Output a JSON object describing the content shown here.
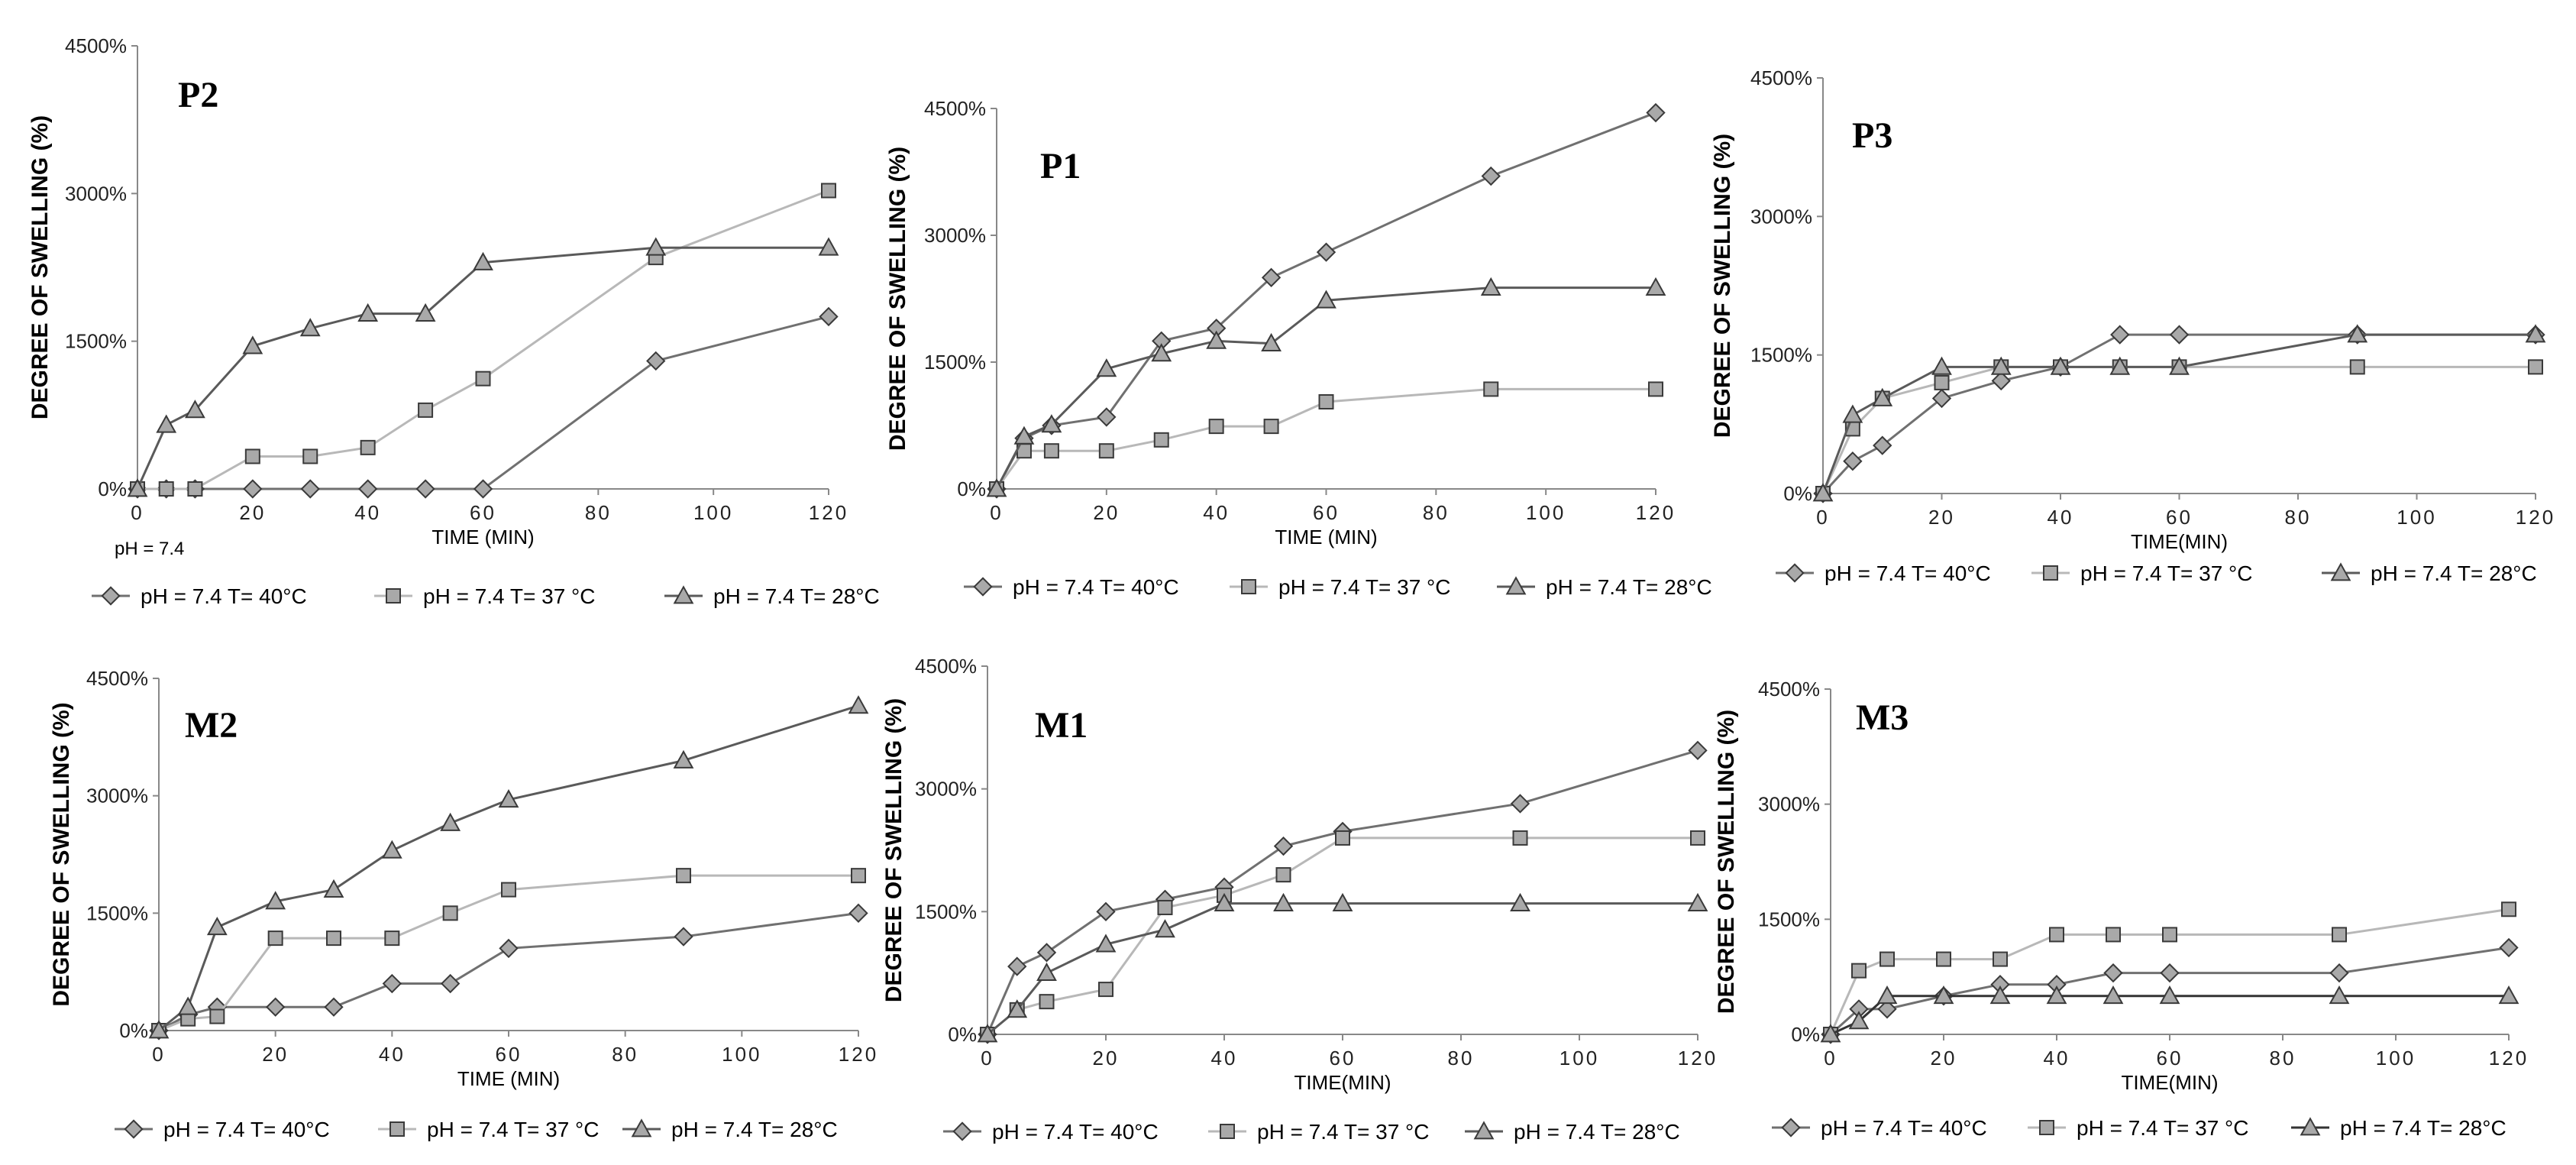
{
  "chart_data": [
    {
      "type": "line",
      "title": "P2",
      "xlabel": "TIME (MIN)",
      "ylabel": "DEGREE  OF SWELLING  (%)",
      "note": "pH = 7.4",
      "xlim": [
        0,
        120
      ],
      "ylim": [
        0,
        4500
      ],
      "xticks": [
        "0",
        "20",
        "40",
        "60",
        "80",
        "100",
        "120"
      ],
      "yticks": [
        "0%",
        "1500%",
        "3000%",
        "4500%"
      ],
      "series": [
        {
          "name": "pH = 7.4  T= 40°C",
          "marker": "diamond",
          "color": "#707070",
          "x": [
            0,
            5,
            10,
            20,
            30,
            40,
            50,
            60,
            90,
            120
          ],
          "y": [
            0,
            0,
            0,
            0,
            0,
            0,
            0,
            0,
            1300,
            1750
          ]
        },
        {
          "name": "pH = 7.4 T= 37 °C",
          "marker": "square",
          "color": "#b8b8b8",
          "x": [
            0,
            5,
            10,
            20,
            30,
            40,
            50,
            60,
            90,
            120
          ],
          "y": [
            0,
            0,
            0,
            330,
            330,
            420,
            800,
            1120,
            2350,
            3030
          ]
        },
        {
          "name": "pH = 7.4    T= 28°C",
          "marker": "triangle",
          "color": "#5a5a5a",
          "x": [
            0,
            5,
            10,
            20,
            30,
            40,
            50,
            60,
            90,
            120
          ],
          "y": [
            0,
            650,
            800,
            1450,
            1630,
            1780,
            1780,
            2300,
            2450,
            2450
          ]
        }
      ]
    },
    {
      "type": "line",
      "title": "P1",
      "xlabel": "TIME (MIN)",
      "ylabel": "DEGREE OF SWELLING  (%)",
      "xlim": [
        0,
        120
      ],
      "ylim": [
        0,
        4500
      ],
      "xticks": [
        "0",
        "20",
        "40",
        "60",
        "80",
        "100",
        "120"
      ],
      "yticks": [
        "0%",
        "1500%",
        "3000%",
        "4500%"
      ],
      "series": [
        {
          "name": "pH = 7.4  T= 40°C",
          "marker": "diamond",
          "color": "#707070",
          "x": [
            0,
            5,
            10,
            20,
            30,
            40,
            50,
            60,
            90,
            120
          ],
          "y": [
            0,
            600,
            750,
            850,
            1750,
            1900,
            2500,
            2800,
            3700,
            4450
          ]
        },
        {
          "name": "pH = 7.4  T= 37 °C",
          "marker": "square",
          "color": "#b8b8b8",
          "x": [
            0,
            5,
            10,
            20,
            30,
            40,
            50,
            60,
            90,
            120
          ],
          "y": [
            0,
            450,
            450,
            450,
            580,
            740,
            740,
            1030,
            1180,
            1180
          ]
        },
        {
          "name": "pH = 7.4     T= 28°C",
          "marker": "triangle",
          "color": "#5a5a5a",
          "x": [
            0,
            5,
            10,
            20,
            30,
            40,
            50,
            60,
            90,
            120
          ],
          "y": [
            0,
            620,
            760,
            1420,
            1600,
            1750,
            1720,
            2230,
            2380,
            2380
          ]
        }
      ]
    },
    {
      "type": "line",
      "title": "P3",
      "xlabel": "TIME(MIN)",
      "ylabel": "DEGREE  OF SWELLING  (%)",
      "xlim": [
        0,
        120
      ],
      "ylim": [
        0,
        4500
      ],
      "xticks": [
        "0",
        "20",
        "40",
        "60",
        "80",
        "100",
        "120"
      ],
      "yticks": [
        "0%",
        "1500%",
        "3000%",
        "4500%"
      ],
      "series": [
        {
          "name": "pH = 7.4  T= 40°C",
          "marker": "diamond",
          "color": "#707070",
          "x": [
            0,
            5,
            10,
            20,
            30,
            40,
            50,
            60,
            90,
            120
          ],
          "y": [
            0,
            350,
            520,
            1030,
            1220,
            1370,
            1720,
            1720,
            1720,
            1720
          ]
        },
        {
          "name": "pH = 7.4  T= 37 °C",
          "marker": "square",
          "color": "#b8b8b8",
          "x": [
            0,
            5,
            10,
            20,
            30,
            40,
            50,
            60,
            90,
            120
          ],
          "y": [
            0,
            700,
            1030,
            1200,
            1370,
            1370,
            1370,
            1370,
            1370,
            1370
          ]
        },
        {
          "name": "pH = 7.4    T= 28°C",
          "marker": "triangle",
          "color": "#5a5a5a",
          "x": [
            0,
            5,
            10,
            20,
            30,
            40,
            50,
            60,
            90,
            120
          ],
          "y": [
            0,
            850,
            1030,
            1370,
            1370,
            1370,
            1370,
            1370,
            1720,
            1720
          ]
        }
      ]
    },
    {
      "type": "line",
      "title": "M2",
      "xlabel": "TIME (MIN)",
      "ylabel": "DEGREE  OF SWELLING  (%)",
      "xlim": [
        0,
        120
      ],
      "ylim": [
        0,
        4500
      ],
      "xticks": [
        "0",
        "20",
        "40",
        "60",
        "80",
        "100",
        "120"
      ],
      "yticks": [
        "0%",
        "1500%",
        "3000%",
        "4500%"
      ],
      "series": [
        {
          "name": "pH = 7.4  T= 40°C",
          "marker": "diamond",
          "color": "#707070",
          "x": [
            0,
            5,
            10,
            20,
            30,
            40,
            50,
            60,
            90,
            120
          ],
          "y": [
            0,
            200,
            300,
            300,
            300,
            600,
            600,
            1050,
            1200,
            1500
          ]
        },
        {
          "name": "pH = 7.4  T= 37 °C",
          "marker": "square",
          "color": "#b8b8b8",
          "x": [
            0,
            5,
            10,
            20,
            30,
            40,
            50,
            60,
            90,
            120
          ],
          "y": [
            0,
            150,
            180,
            1180,
            1180,
            1180,
            1500,
            1800,
            1980,
            1980
          ]
        },
        {
          "name": "pH = 7.4    T= 28°C",
          "marker": "triangle",
          "color": "#5a5a5a",
          "x": [
            0,
            5,
            10,
            20,
            30,
            40,
            50,
            60,
            90,
            120
          ],
          "y": [
            0,
            300,
            1320,
            1650,
            1800,
            2300,
            2650,
            2950,
            3450,
            4150
          ]
        }
      ]
    },
    {
      "type": "line",
      "title": "M1",
      "xlabel": "TIME(MIN)",
      "ylabel": "DEGREE  OF SWELLING  (%)",
      "xlim": [
        0,
        120
      ],
      "ylim": [
        0,
        4500
      ],
      "xticks": [
        "0",
        "20",
        "40",
        "60",
        "80",
        "100",
        "120"
      ],
      "yticks": [
        "0%",
        "1500%",
        "3000%",
        "4500%"
      ],
      "series": [
        {
          "name": "pH = 7.4  T= 40°C",
          "marker": "diamond",
          "color": "#707070",
          "x": [
            0,
            5,
            10,
            20,
            30,
            40,
            50,
            60,
            90,
            120
          ],
          "y": [
            0,
            830,
            1000,
            1500,
            1650,
            1800,
            2300,
            2480,
            2820,
            3470
          ]
        },
        {
          "name": "pH = 7.4  T= 37 °C",
          "marker": "square",
          "color": "#b8b8b8",
          "x": [
            0,
            5,
            10,
            20,
            30,
            40,
            50,
            60,
            90,
            120
          ],
          "y": [
            0,
            300,
            400,
            550,
            1550,
            1700,
            1950,
            2400,
            2400,
            2400
          ]
        },
        {
          "name": "pH = 7.4     T= 28°C",
          "marker": "triangle",
          "color": "#5a5a5a",
          "x": [
            0,
            5,
            10,
            20,
            30,
            40,
            50,
            60,
            90,
            120
          ],
          "y": [
            0,
            300,
            750,
            1100,
            1280,
            1600,
            1600,
            1600,
            1600,
            1600
          ]
        }
      ]
    },
    {
      "type": "line",
      "title": "M3",
      "xlabel": "TIME(MIN)",
      "ylabel": "DEGREE  OF SWELLING  (%)",
      "xlim": [
        0,
        120
      ],
      "ylim": [
        0,
        4500
      ],
      "xticks": [
        "0",
        "20",
        "40",
        "60",
        "80",
        "100",
        "120"
      ],
      "yticks": [
        "0%",
        "1500%",
        "3000%",
        "4500%"
      ],
      "series": [
        {
          "name": "pH = 7.4  T= 40°C",
          "marker": "diamond",
          "color": "#707070",
          "x": [
            0,
            5,
            10,
            20,
            30,
            40,
            50,
            60,
            90,
            120
          ],
          "y": [
            0,
            330,
            330,
            500,
            650,
            650,
            800,
            800,
            800,
            1130
          ]
        },
        {
          "name": "pH = 7.4  T= 37 °C",
          "marker": "square",
          "color": "#b8b8b8",
          "x": [
            0,
            5,
            10,
            20,
            30,
            40,
            50,
            60,
            90,
            120
          ],
          "y": [
            0,
            830,
            980,
            980,
            980,
            1300,
            1300,
            1300,
            1300,
            1630
          ]
        },
        {
          "name": "pH = 7.4    T= 28°C",
          "marker": "triangle",
          "color": "#333333",
          "x": [
            0,
            5,
            10,
            20,
            30,
            40,
            50,
            60,
            90,
            120
          ],
          "y": [
            0,
            170,
            500,
            500,
            500,
            500,
            500,
            500,
            500,
            500
          ]
        }
      ]
    }
  ]
}
